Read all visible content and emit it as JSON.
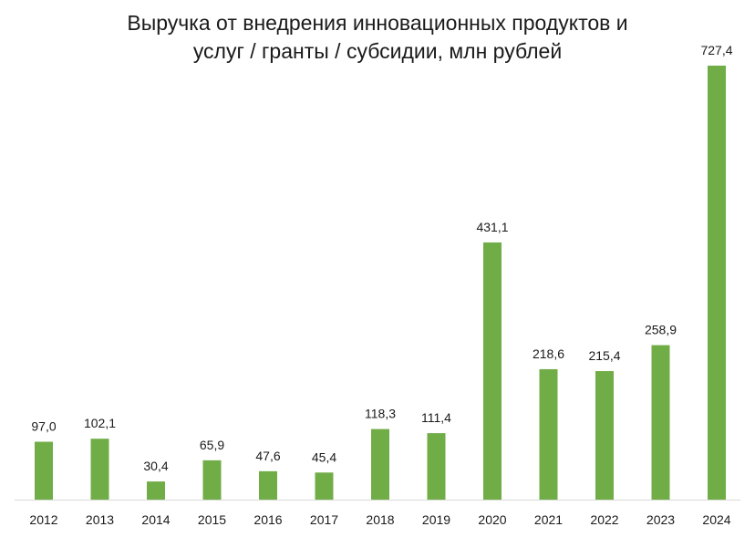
{
  "chart_data": {
    "type": "bar",
    "title_lines": [
      "Выручка от внедрения инновационных продуктов и",
      "услуг / гранты / субсидии, млн рублей"
    ],
    "categories": [
      "2012",
      "2013",
      "2014",
      "2015",
      "2016",
      "2017",
      "2018",
      "2019",
      "2020",
      "2021",
      "2022",
      "2023",
      "2024"
    ],
    "values": [
      97.0,
      102.1,
      30.4,
      65.9,
      47.6,
      45.4,
      118.3,
      111.4,
      431.1,
      218.6,
      215.4,
      258.9,
      727.4
    ],
    "data_labels": [
      "97,0",
      "102,1",
      "30,4",
      "65,9",
      "47,6",
      "45,4",
      "118,3",
      "111,4",
      "431,1",
      "218,6",
      "215,4",
      "258,9",
      "727,4"
    ],
    "xlabel": "",
    "ylabel": "",
    "ylim": [
      0,
      740
    ],
    "grid": false,
    "legend": "none",
    "bar_color": "#70ad47",
    "axis_color": "#d9d9d9"
  }
}
